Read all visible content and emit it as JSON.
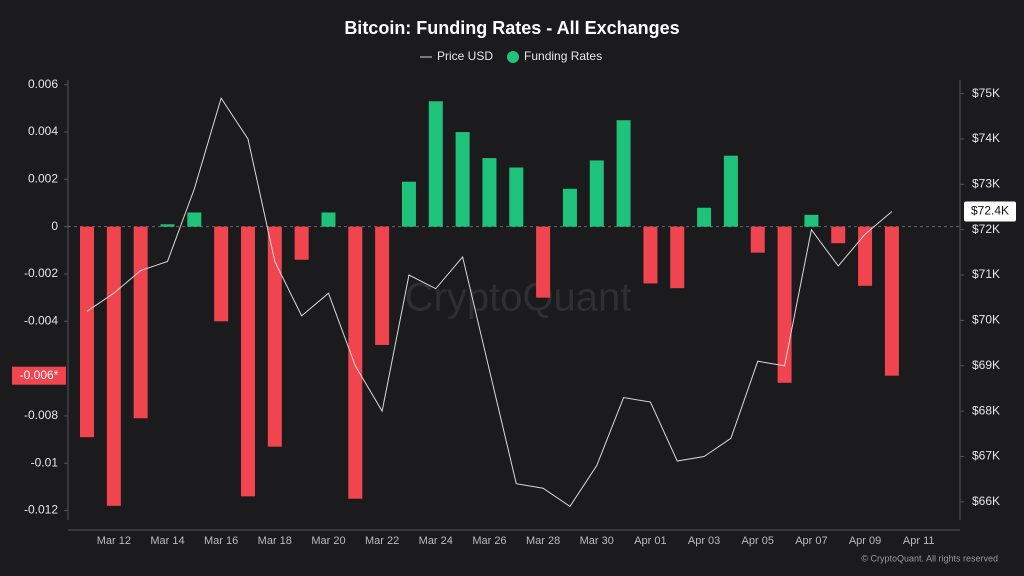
{
  "chart_data": {
    "type": "bar",
    "title": "Bitcoin: Funding Rates - All Exchanges",
    "watermark": "CryptoQuant",
    "footer": "© CryptoQuant. All rights reserved",
    "categories": [
      null,
      "Mar 12",
      null,
      "Mar 14",
      null,
      "Mar 16",
      null,
      "Mar 18",
      null,
      "Mar 20",
      null,
      "Mar 22",
      null,
      "Mar 24",
      null,
      "Mar 26",
      null,
      "Mar 28",
      null,
      "Mar 30",
      null,
      "Apr 01",
      null,
      "Apr 03",
      null,
      "Apr 05",
      null,
      "Apr 07",
      null,
      "Apr 09",
      null,
      "Apr 11"
    ],
    "series": [
      {
        "name": "Price USD",
        "type": "line",
        "axis": "y2",
        "color": "#d9d9d9",
        "values": [
          70200,
          70600,
          71100,
          71300,
          72900,
          74900,
          74000,
          71300,
          70100,
          70600,
          69000,
          68000,
          71000,
          70700,
          71400,
          68900,
          66400,
          66300,
          65900,
          66800,
          68300,
          68200,
          66900,
          67000,
          67400,
          69100,
          69000,
          72000,
          71200,
          71900,
          72400,
          null
        ]
      },
      {
        "name": "Funding Rates",
        "type": "bar",
        "color": "#1fc27a",
        "negative_color": "#f0444f",
        "values": [
          -0.0089,
          -0.0118,
          -0.0081,
          0.0001,
          0.0006,
          -0.004,
          -0.0114,
          -0.0093,
          -0.0014,
          0.0006,
          -0.0115,
          -0.005,
          0.0019,
          0.0053,
          0.004,
          0.0029,
          0.0025,
          -0.003,
          0.0016,
          0.0028,
          0.0045,
          -0.0024,
          -0.0026,
          0.0008,
          0.003,
          -0.0011,
          -0.0066,
          0.0005,
          -0.0007,
          -0.0025,
          -0.0063,
          null
        ]
      }
    ],
    "ylim": [
      -0.0124,
      0.0062
    ],
    "yticks": [
      0.006,
      0.004,
      0.002,
      0,
      -0.002,
      -0.004,
      -0.008,
      -0.01,
      -0.012
    ],
    "y2lim": [
      65600,
      75300
    ],
    "y2ticks": [
      {
        "value": 75000,
        "label": "$75K"
      },
      {
        "value": 74000,
        "label": "$74K"
      },
      {
        "value": 73000,
        "label": "$73K"
      },
      {
        "value": 72000,
        "label": "$72K"
      },
      {
        "value": 71000,
        "label": "$71K"
      },
      {
        "value": 70000,
        "label": "$70K"
      },
      {
        "value": 69000,
        "label": "$69K"
      },
      {
        "value": 68000,
        "label": "$68K"
      },
      {
        "value": 67000,
        "label": "$67K"
      },
      {
        "value": 66000,
        "label": "$66K"
      }
    ],
    "current_funding": {
      "value": -0.0063,
      "label": "-0.006*"
    },
    "current_price": {
      "value": 72400,
      "label": "$72.4K"
    }
  }
}
